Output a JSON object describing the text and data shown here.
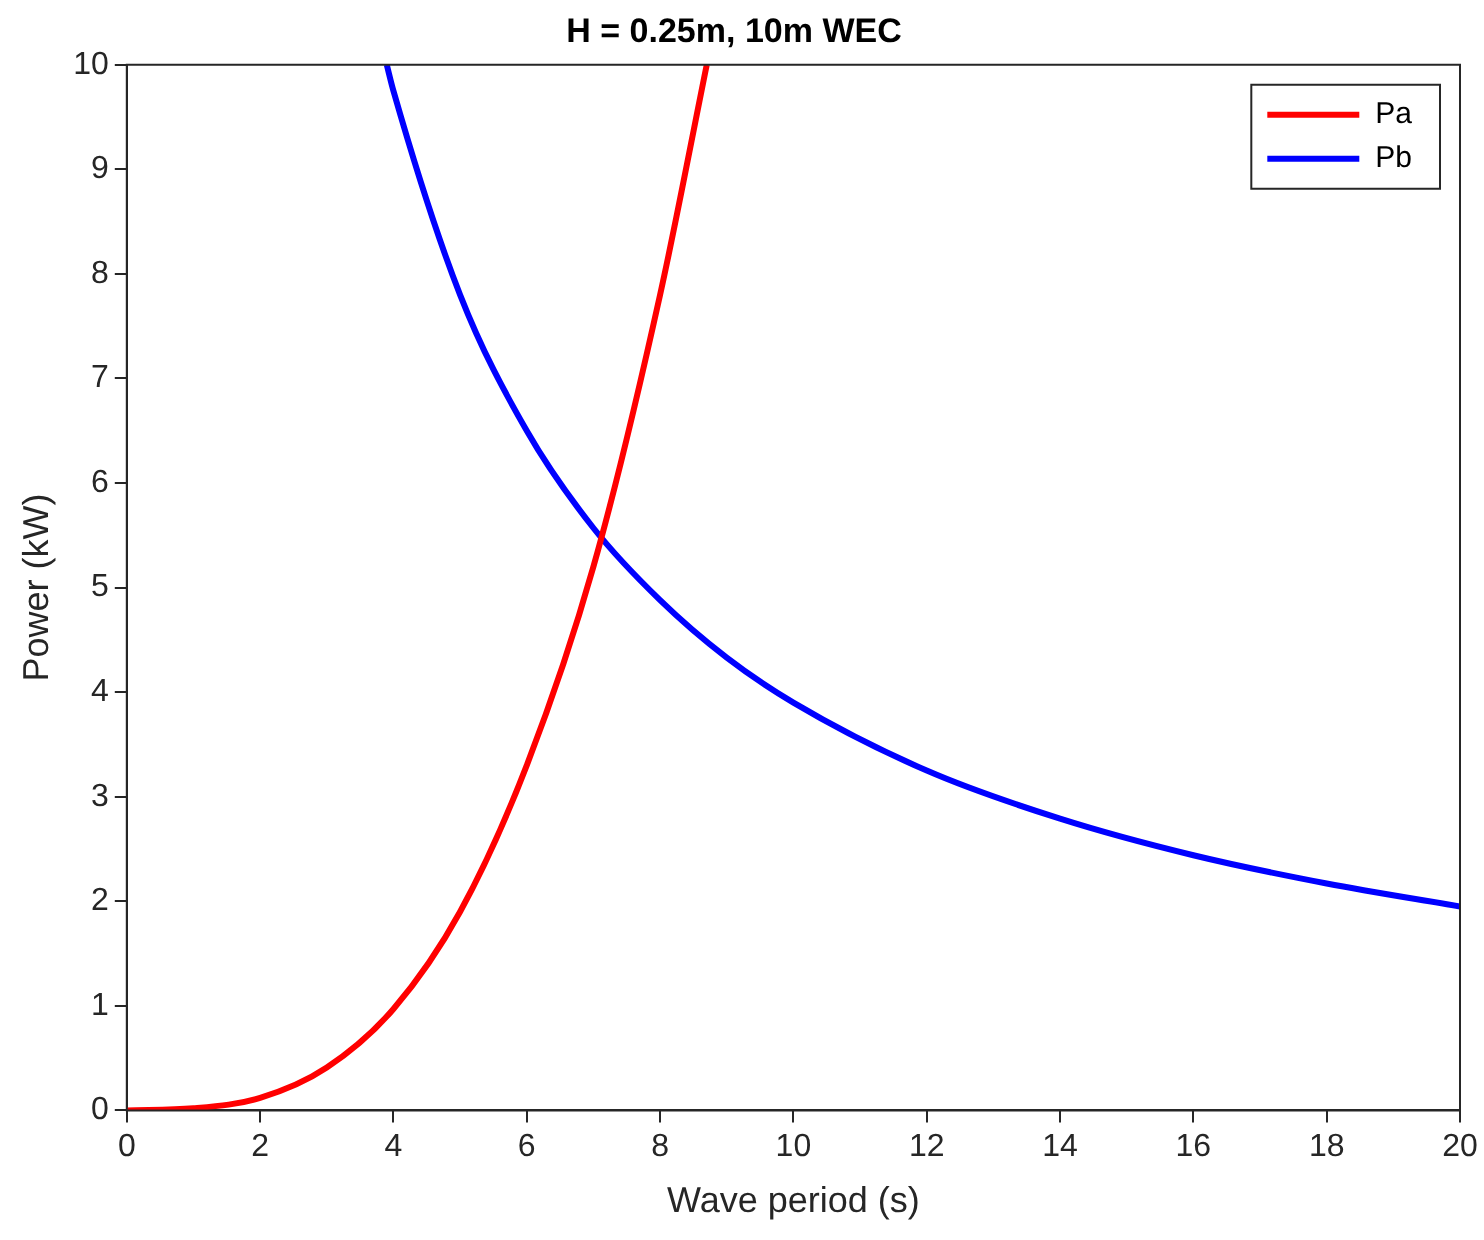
{
  "chart_data": {
    "type": "line",
    "title": "H = 0.25m, 10m WEC",
    "xlabel": "Wave period (s)",
    "ylabel": "Power (kW)",
    "xlim": [
      0,
      20
    ],
    "xticks": [
      0,
      2,
      4,
      6,
      8,
      10,
      12,
      14,
      16,
      18,
      20
    ],
    "ylim": [
      0,
      10
    ],
    "yticks": [
      0,
      1,
      2,
      3,
      4,
      5,
      6,
      7,
      8,
      9,
      10
    ],
    "grid": false,
    "legend": "top right",
    "marker": "none",
    "line_style": "solid",
    "series": [
      {
        "name": "Pa",
        "color": "#ff0000",
        "x": [
          0,
          1,
          2,
          3,
          4,
          5,
          6,
          7,
          8,
          8.7
        ],
        "values": [
          0,
          0.02,
          0.12,
          0.41,
          0.97,
          1.9,
          3.3,
          5.2,
          7.8,
          10
        ]
      },
      {
        "name": "Pb",
        "color": "#0000ff",
        "x": [
          3.9,
          4,
          5,
          6,
          7,
          8,
          9,
          10,
          12,
          14,
          16,
          18,
          20
        ],
        "values": [
          10,
          9.75,
          7.8,
          6.5,
          5.57,
          4.88,
          4.33,
          3.9,
          3.25,
          2.79,
          2.44,
          2.17,
          1.95
        ]
      }
    ]
  }
}
